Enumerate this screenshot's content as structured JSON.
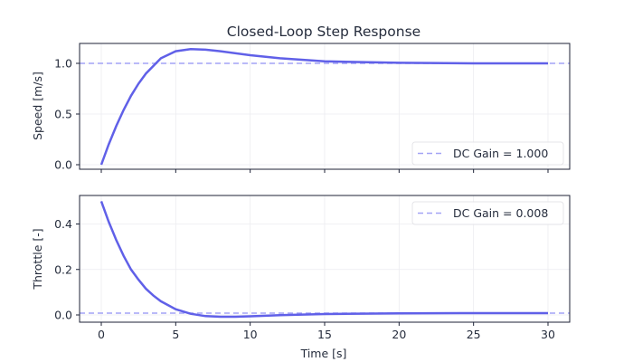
{
  "chart_data": [
    {
      "type": "line",
      "title": "Closed-Loop Step Response",
      "xlabel": "",
      "ylabel": "Speed [m/s]",
      "xlim": [
        -1.5,
        31.5
      ],
      "ylim": [
        -0.05,
        1.2
      ],
      "xticks": [
        0,
        5,
        10,
        15,
        20,
        25,
        30
      ],
      "yticks": [
        0.0,
        0.5,
        1.0
      ],
      "ytick_labels": [
        "0.0",
        "0.5",
        "1.0"
      ],
      "grid": true,
      "legend": {
        "position": "lower right",
        "entries": [
          "DC Gain = 1.000"
        ]
      },
      "series": [
        {
          "name": "Speed",
          "style": "solid",
          "color": "#6060e8",
          "x": [
            0,
            0.5,
            1,
            1.5,
            2,
            2.5,
            3,
            4,
            5,
            6,
            7,
            8,
            10,
            12,
            15,
            20,
            25,
            30
          ],
          "y": [
            0.0,
            0.2,
            0.38,
            0.54,
            0.68,
            0.8,
            0.9,
            1.05,
            1.12,
            1.14,
            1.135,
            1.12,
            1.08,
            1.05,
            1.02,
            1.005,
            1.0,
            1.0
          ]
        },
        {
          "name": "DC Gain = 1.000",
          "style": "dashed",
          "color": "#a3a3f5",
          "x": [
            -1.5,
            31.5
          ],
          "y": [
            1.0,
            1.0
          ]
        }
      ]
    },
    {
      "type": "line",
      "title": "",
      "xlabel": "Time [s]",
      "ylabel": "Throttle [-]",
      "xlim": [
        -1.5,
        31.5
      ],
      "ylim": [
        -0.03,
        0.52
      ],
      "xticks": [
        0,
        5,
        10,
        15,
        20,
        25,
        30
      ],
      "xtick_labels": [
        "0",
        "5",
        "10",
        "15",
        "20",
        "25",
        "30"
      ],
      "yticks": [
        0.0,
        0.2,
        0.4
      ],
      "ytick_labels": [
        "0.0",
        "0.2",
        "0.4"
      ],
      "grid": true,
      "legend": {
        "position": "upper right",
        "entries": [
          "DC Gain = 0.008"
        ]
      },
      "series": [
        {
          "name": "Throttle",
          "style": "solid",
          "color": "#6060e8",
          "x": [
            0,
            0.5,
            1,
            1.5,
            2,
            2.5,
            3,
            3.5,
            4,
            5,
            6,
            7,
            8,
            9,
            10,
            12,
            15,
            20,
            25,
            30
          ],
          "y": [
            0.5,
            0.41,
            0.33,
            0.26,
            0.2,
            0.155,
            0.115,
            0.085,
            0.06,
            0.025,
            0.005,
            -0.005,
            -0.008,
            -0.008,
            -0.006,
            -0.001,
            0.004,
            0.007,
            0.008,
            0.008
          ]
        },
        {
          "name": "DC Gain = 0.008",
          "style": "dashed",
          "color": "#a3a3f5",
          "x": [
            -1.5,
            31.5
          ],
          "y": [
            0.008,
            0.008
          ]
        }
      ]
    }
  ],
  "figure": {
    "title": "Closed-Loop Step Response",
    "top": {
      "ylabel": "Speed [m/s]",
      "legend_label": "DC Gain = 1.000"
    },
    "bottom": {
      "ylabel": "Throttle [-]",
      "xlabel": "Time [s]",
      "legend_label": "DC Gain = 0.008"
    },
    "colors": {
      "line": "#6060e8",
      "dc_gain": "#a3a3f5",
      "axes": "#1c2236",
      "grid": "#ececf0",
      "text": "#262d3d"
    }
  }
}
